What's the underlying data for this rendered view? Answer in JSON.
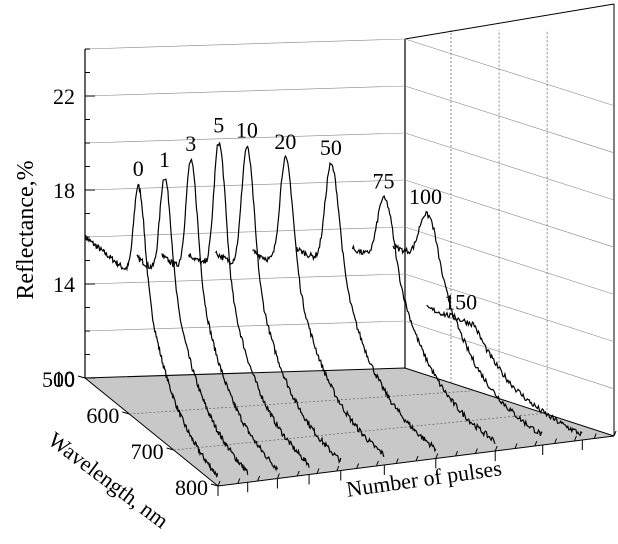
{
  "chart_data": {
    "type": "line",
    "projection": "3d-waterfall",
    "title": "",
    "zlabel": "Reflectance,%",
    "ylabel": "Wavelength, nm",
    "xlabel": "Number of pulses",
    "zlim": [
      10,
      24
    ],
    "z_ticks": [
      "10",
      "14",
      "18",
      "22"
    ],
    "y_ticks": [
      "500",
      "600",
      "700",
      "800"
    ],
    "grid": true,
    "series": [
      {
        "name": "0",
        "peak_reflectance": 20.0,
        "peak_wavelength_nm": 620,
        "long_wavelength_reflectance": 10.0
      },
      {
        "name": "1",
        "peak_reflectance": 20.3,
        "peak_wavelength_nm": 620,
        "long_wavelength_reflectance": 10.0
      },
      {
        "name": "3",
        "peak_reflectance": 20.9,
        "peak_wavelength_nm": 620,
        "long_wavelength_reflectance": 10.0
      },
      {
        "name": "5",
        "peak_reflectance": 21.6,
        "peak_wavelength_nm": 620,
        "long_wavelength_reflectance": 10.0
      },
      {
        "name": "10",
        "peak_reflectance": 21.3,
        "peak_wavelength_nm": 620,
        "long_wavelength_reflectance": 10.0
      },
      {
        "name": "20",
        "peak_reflectance": 20.7,
        "peak_wavelength_nm": 620,
        "long_wavelength_reflectance": 10.0
      },
      {
        "name": "50",
        "peak_reflectance": 20.3,
        "peak_wavelength_nm": 620,
        "long_wavelength_reflectance": 10.0
      },
      {
        "name": "75",
        "peak_reflectance": 18.7,
        "peak_wavelength_nm": 620,
        "long_wavelength_reflectance": 10.0
      },
      {
        "name": "100",
        "peak_reflectance": 17.9,
        "peak_wavelength_nm": 620,
        "long_wavelength_reflectance": 10.0
      },
      {
        "name": "150",
        "peak_reflectance": 13.3,
        "peak_wavelength_nm": 620,
        "long_wavelength_reflectance": 10.0
      }
    ]
  }
}
